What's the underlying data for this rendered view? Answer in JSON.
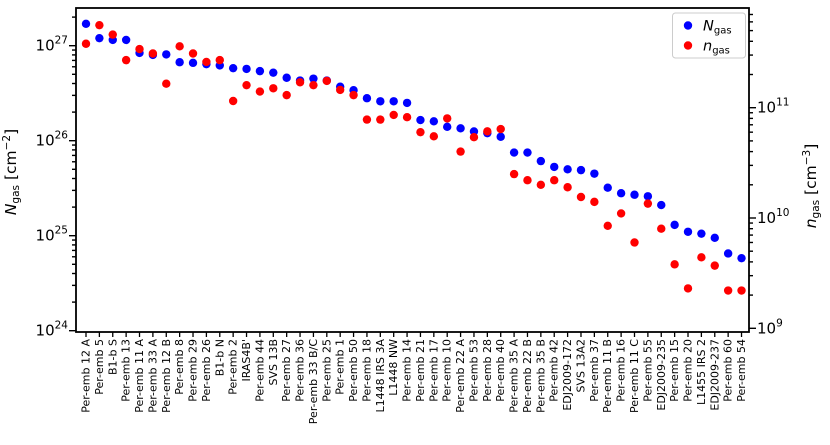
{
  "chart_data": {
    "type": "scatter",
    "title": "",
    "categories": [
      "Per-emb 12 A",
      "Per-emb 5",
      "B1-b S",
      "Per-emb 13",
      "Per-emb 11 A",
      "Per-emb 33 A",
      "Per-emb 12 B",
      "Per-emb 8",
      "Per-emb 29",
      "Per-emb 26",
      "B1-b N",
      "Per-emb 2",
      "IRAS4B'",
      "Per-emb 44",
      "SVS 13B",
      "Per-emb 27",
      "Per-emb 36",
      "Per-emb 33 B/C",
      "Per-emb 25",
      "Per-emb 1",
      "Per-emb 50",
      "Per-emb 18",
      "L1448 IRS 3A",
      "L1448 NW",
      "Per-emb 14",
      "Per-emb 21",
      "Per-emb 17",
      "Per-emb 10",
      "Per-emb 22 A",
      "Per-emb 53",
      "Per-emb 28",
      "Per-emb 40",
      "Per-emb 35 A",
      "Per-emb 22 B",
      "Per-emb 35 B",
      "Per-emb 42",
      "EDJ2009-172",
      "SVS 13A2",
      "Per-emb 37",
      "Per-emb 11 B",
      "Per-emb 16",
      "Per-emb 11 C",
      "Per-emb 55",
      "EDJ2009-235",
      "Per-emb 15",
      "Per-emb 20",
      "L1455 IRS 2",
      "EDJ2009-237",
      "Per-emb 60",
      "Per-emb 54"
    ],
    "series": [
      {
        "name": "N_gas",
        "axis": "left",
        "color": "#0000ff",
        "values": [
          1.7e+27,
          1.2e+27,
          1.15e+27,
          1.15e+27,
          8.4e+26,
          8e+26,
          8.1e+26,
          6.7e+26,
          6.6e+26,
          6.4e+26,
          6.2e+26,
          5.8e+26,
          5.7e+26,
          5.4e+26,
          5.2e+26,
          4.6e+26,
          4.3e+26,
          4.5e+26,
          4.3e+26,
          3.7e+26,
          3.4e+26,
          2.8e+26,
          2.6e+26,
          2.6e+26,
          2.5e+26,
          1.65e+26,
          1.6e+26,
          1.4e+26,
          1.35e+26,
          1.25e+26,
          1.2e+26,
          1.1e+26,
          7.5e+25,
          7.5e+25,
          6.1e+25,
          5.3e+25,
          5e+25,
          4.9e+25,
          4.5e+25,
          3.2e+25,
          2.8e+25,
          2.7e+25,
          2.6e+25,
          2.1e+25,
          1.3e+25,
          1.1e+25,
          1.05e+25,
          9.5e+24,
          6.5e+24,
          5.8e+24
        ]
      },
      {
        "name": "n_gas",
        "axis": "right",
        "color": "#ff0000",
        "values": [
          380000000000.0,
          560000000000.0,
          460000000000.0,
          270000000000.0,
          340000000000.0,
          310000000000.0,
          165000000000.0,
          360000000000.0,
          310000000000.0,
          260000000000.0,
          270000000000.0,
          115000000000.0,
          160000000000.0,
          140000000000.0,
          150000000000.0,
          130000000000.0,
          170000000000.0,
          160000000000.0,
          175000000000.0,
          145000000000.0,
          130000000000.0,
          78000000000.0,
          78000000000.0,
          86000000000.0,
          82000000000.0,
          60000000000.0,
          55000000000.0,
          80000000000.0,
          40000000000.0,
          54000000000.0,
          61000000000.0,
          64000000000.0,
          25000000000.0,
          22000000000.0,
          20000000000.0,
          22000000000.0,
          19000000000.0,
          15500000000.0,
          14000000000.0,
          8500000000.0,
          11000000000.0,
          6000000000.0,
          13500000000.0,
          8000000000.0,
          3800000000.0,
          2300000000.0,
          4400000000.0,
          3700000000.0,
          2200000000.0,
          2200000000.0
        ]
      }
    ],
    "left_axis": {
      "symbol": "N",
      "symbol_sub": "gas",
      "unit": "cm",
      "unit_exp": "−2",
      "tick_base": "10",
      "tick_exponents": [
        "24",
        "25",
        "26",
        "27"
      ],
      "scale": "log",
      "range_exp": [
        24.0,
        27.4
      ]
    },
    "right_axis": {
      "symbol": "n",
      "symbol_sub": "gas",
      "unit": "cm",
      "unit_exp": "−3",
      "tick_base": "10",
      "tick_exponents": [
        "9",
        "10",
        "11"
      ],
      "scale": "log",
      "range_exp": [
        8.98,
        11.9
      ]
    },
    "legend": {
      "position": "upper right",
      "items": [
        {
          "symbol": "N",
          "sub": "gas",
          "color": "#0000ff"
        },
        {
          "symbol": "n",
          "sub": "gas",
          "color": "#ff0000"
        }
      ]
    },
    "grid": false,
    "xlabel": "",
    "ylabel_left": "N_gas [cm^-2]",
    "ylabel_right": "n_gas [cm^-3]"
  }
}
